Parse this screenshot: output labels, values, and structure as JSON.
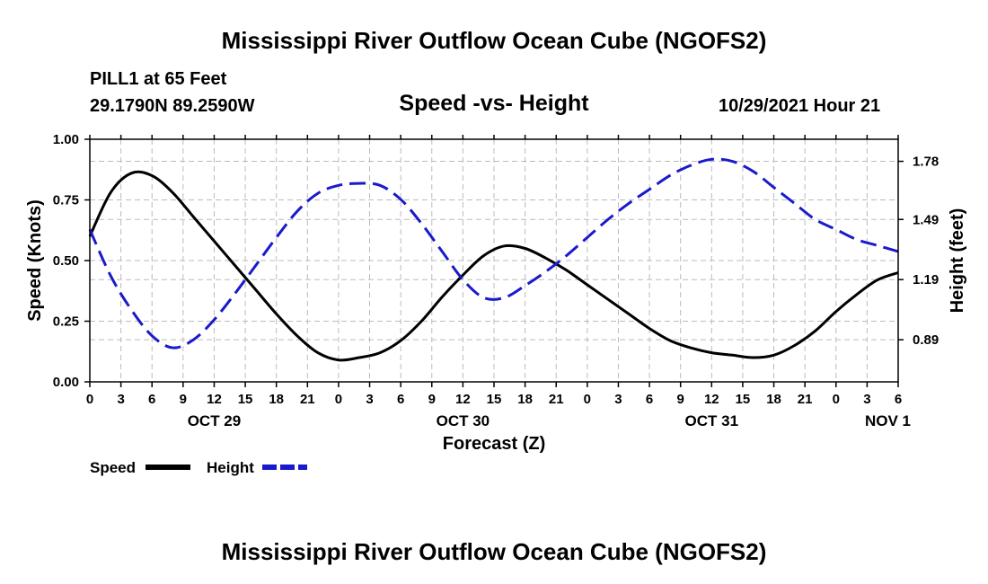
{
  "page": {
    "title": "Mississippi River Outflow Ocean Cube (NGOFS2)",
    "station": "PILL1 at 65 Feet",
    "coordinates": "29.1790N  89.2590W",
    "subtitle": "Speed -vs- Height",
    "datetime": "10/29/2021 Hour 21",
    "footer_title": "Mississippi River Outflow Ocean Cube (NGOFS2)"
  },
  "legend": {
    "speed_label": "Speed",
    "height_label": "Height"
  },
  "colors": {
    "speed": "#000000",
    "height": "#1a1acc",
    "grid": "#bbbbbb"
  },
  "chart_data": {
    "type": "line",
    "xlabel": "Forecast (Z)",
    "xlim": [
      0,
      78
    ],
    "x_ticks": [
      0,
      3,
      6,
      9,
      12,
      15,
      18,
      21,
      24,
      27,
      30,
      33,
      36,
      39,
      42,
      45,
      48,
      51,
      54,
      57,
      60,
      63,
      66,
      69,
      72,
      75,
      78
    ],
    "x_tick_labels": [
      "0",
      "3",
      "6",
      "9",
      "12",
      "15",
      "18",
      "21",
      "0",
      "3",
      "6",
      "9",
      "12",
      "15",
      "18",
      "21",
      "0",
      "3",
      "6",
      "9",
      "12",
      "15",
      "18",
      "21",
      "0",
      "3",
      "6"
    ],
    "date_labels": [
      {
        "x": 12,
        "label": "OCT 29"
      },
      {
        "x": 36,
        "label": "OCT 30"
      },
      {
        "x": 60,
        "label": "OCT 31"
      },
      {
        "x": 77,
        "label": "NOV 1"
      }
    ],
    "y_left": {
      "label": "Speed (Knots)",
      "lim": [
        0,
        1
      ],
      "ticks": [
        0,
        0.25,
        0.5,
        0.75,
        1.0
      ],
      "tick_labels": [
        "0.00",
        "0.25",
        "0.50",
        "0.75",
        "1.00"
      ]
    },
    "y_right": {
      "label": "Height (feet)",
      "lim": [
        0.68,
        1.89
      ],
      "ticks": [
        0.89,
        1.19,
        1.49,
        1.78
      ],
      "tick_labels": [
        "0.89",
        "1.19",
        "1.49",
        "1.78"
      ]
    },
    "series": [
      {
        "name": "Speed",
        "axis": "left",
        "style": "solid",
        "x": [
          0,
          2,
          4,
          6,
          8,
          10,
          12,
          14,
          16,
          18,
          20,
          22,
          24,
          26,
          28,
          30,
          32,
          34,
          36,
          38,
          40,
          42,
          44,
          46,
          48,
          50,
          52,
          54,
          56,
          58,
          60,
          62,
          64,
          66,
          68,
          70,
          72,
          74,
          76,
          78
        ],
        "y": [
          0.6,
          0.78,
          0.86,
          0.85,
          0.78,
          0.68,
          0.58,
          0.48,
          0.38,
          0.28,
          0.19,
          0.12,
          0.09,
          0.1,
          0.12,
          0.17,
          0.25,
          0.35,
          0.44,
          0.52,
          0.56,
          0.55,
          0.51,
          0.46,
          0.4,
          0.34,
          0.28,
          0.22,
          0.17,
          0.14,
          0.12,
          0.11,
          0.1,
          0.11,
          0.15,
          0.21,
          0.29,
          0.36,
          0.42,
          0.45
        ]
      },
      {
        "name": "Height",
        "axis": "right",
        "style": "dashed",
        "x": [
          0,
          2,
          4,
          6,
          8,
          10,
          12,
          14,
          16,
          18,
          20,
          22,
          24,
          26,
          28,
          30,
          32,
          34,
          36,
          38,
          40,
          42,
          44,
          46,
          48,
          50,
          52,
          54,
          56,
          58,
          60,
          62,
          64,
          66,
          68,
          70,
          72,
          74,
          76,
          78
        ],
        "y": [
          1.44,
          1.21,
          1.04,
          0.91,
          0.85,
          0.89,
          0.99,
          1.12,
          1.26,
          1.4,
          1.53,
          1.62,
          1.66,
          1.67,
          1.66,
          1.59,
          1.47,
          1.33,
          1.19,
          1.1,
          1.1,
          1.16,
          1.23,
          1.31,
          1.4,
          1.49,
          1.57,
          1.64,
          1.71,
          1.76,
          1.79,
          1.78,
          1.73,
          1.65,
          1.57,
          1.49,
          1.44,
          1.39,
          1.36,
          1.33
        ]
      }
    ]
  }
}
